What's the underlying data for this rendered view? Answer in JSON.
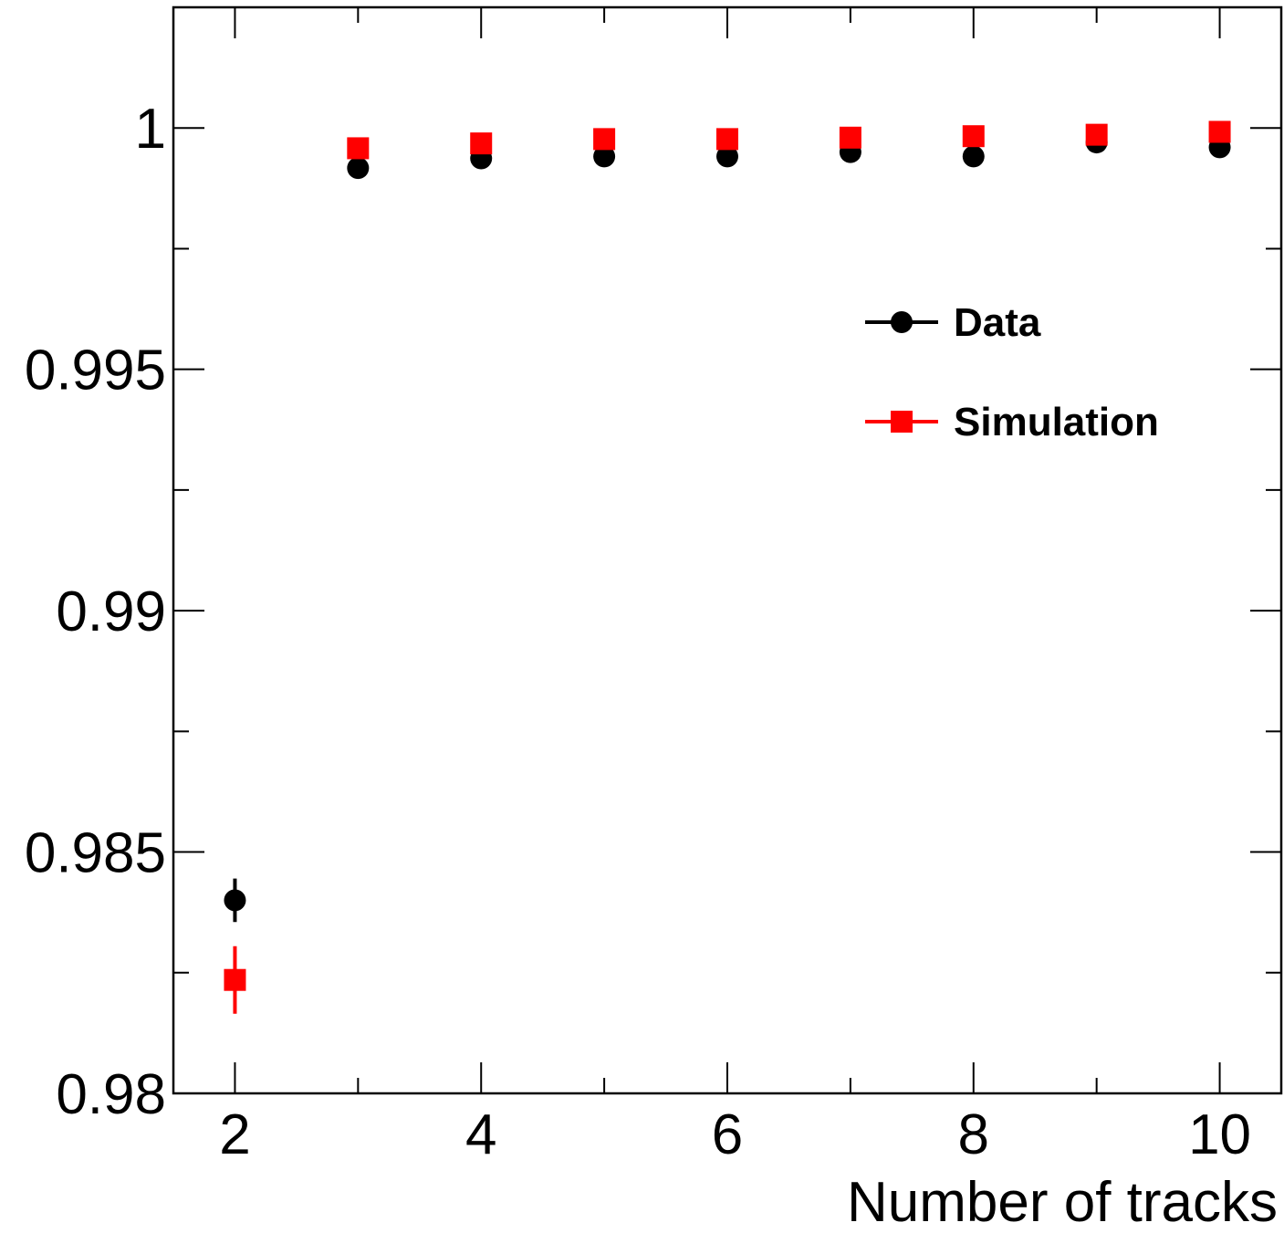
{
  "chart_data": {
    "type": "scatter",
    "xlabel": "Number of tracks",
    "ylabel": "",
    "xlim": [
      1.5,
      10.5
    ],
    "ylim": [
      0.98,
      1.0025
    ],
    "xticks_major": [
      2,
      4,
      6,
      8,
      10
    ],
    "xtick_labels": [
      "2",
      "4",
      "6",
      "8",
      "10"
    ],
    "yticks_major": [
      0.98,
      0.985,
      0.99,
      0.995,
      1.0
    ],
    "ytick_labels": [
      "0.98",
      "0.985",
      "0.99",
      "0.995",
      "1"
    ],
    "grid": false,
    "legend_position": "top-right",
    "series": [
      {
        "name": "Data",
        "marker": "circle",
        "color": "#000000",
        "x": [
          2,
          3,
          4,
          5,
          6,
          7,
          8,
          9,
          10
        ],
        "y": [
          0.984,
          0.99917,
          0.99937,
          0.99941,
          0.99941,
          0.9995,
          0.99941,
          0.9997,
          0.9996
        ],
        "yerr": [
          0.00045,
          4e-05,
          3e-05,
          3e-05,
          3e-05,
          3e-05,
          3e-05,
          3e-05,
          3e-05
        ]
      },
      {
        "name": "Simulation",
        "marker": "square",
        "color": "#ff0000",
        "x": [
          2,
          3,
          4,
          5,
          6,
          7,
          8,
          9,
          10
        ],
        "y": [
          0.98235,
          0.99958,
          0.99968,
          0.99977,
          0.99977,
          0.9998,
          0.99983,
          0.99986,
          0.99992
        ],
        "yerr": [
          0.0007,
          4e-05,
          3e-05,
          3e-05,
          3e-05,
          3e-05,
          3e-05,
          3e-05,
          3e-05
        ]
      }
    ]
  }
}
